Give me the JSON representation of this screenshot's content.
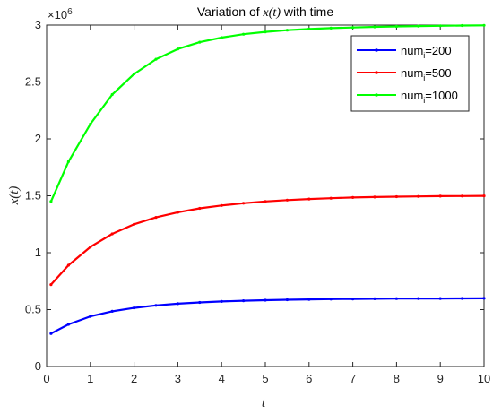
{
  "chart_data": {
    "type": "line",
    "title_prefix": "Variation of ",
    "title_var": "x(t)",
    "title_suffix": " with time",
    "xlabel": "t",
    "ylabel": "x(t)",
    "xlim": [
      0,
      10
    ],
    "ylim": [
      0,
      3000000
    ],
    "x_ticks": [
      "0",
      "1",
      "2",
      "3",
      "4",
      "5",
      "6",
      "7",
      "8",
      "9",
      "10"
    ],
    "y_ticks": [
      "0",
      "0.5",
      "1",
      "1.5",
      "2",
      "2.5",
      "3"
    ],
    "y_exponent_base": "×10",
    "y_exponent_power": "6",
    "grid": false,
    "legend_position": "top-right",
    "x": [
      0.1,
      0.5,
      1,
      1.5,
      2,
      2.5,
      3,
      3.5,
      4,
      4.5,
      5,
      5.5,
      6,
      6.5,
      7,
      7.5,
      8,
      8.5,
      9,
      9.5,
      10
    ],
    "series": [
      {
        "legend_prefix": "num",
        "legend_sub": "i",
        "legend_suffix": "=200",
        "color": "#0000ff",
        "values": [
          290000,
          370000,
          440000,
          485000,
          515000,
          537000,
          552000,
          563000,
          572000,
          578000,
          583000,
          587000,
          590000,
          592000,
          594000,
          595500,
          596500,
          597500,
          598000,
          598500,
          599000
        ]
      },
      {
        "legend_prefix": "num",
        "legend_sub": "i",
        "legend_suffix": "=500",
        "color": "#ff0000",
        "values": [
          720000,
          890000,
          1050000,
          1165000,
          1250000,
          1310000,
          1355000,
          1390000,
          1415000,
          1435000,
          1450000,
          1462000,
          1472000,
          1479000,
          1485000,
          1489000,
          1492000,
          1494500,
          1496500,
          1498000,
          1499000
        ]
      },
      {
        "legend_prefix": "num",
        "legend_sub": "i",
        "legend_suffix": "=1000",
        "color": "#00ff00",
        "values": [
          1450000,
          1800000,
          2130000,
          2390000,
          2570000,
          2700000,
          2790000,
          2850000,
          2890000,
          2920000,
          2940000,
          2955000,
          2965000,
          2973000,
          2979000,
          2984000,
          2988000,
          2991000,
          2994000,
          2996000,
          2998000
        ]
      }
    ]
  }
}
